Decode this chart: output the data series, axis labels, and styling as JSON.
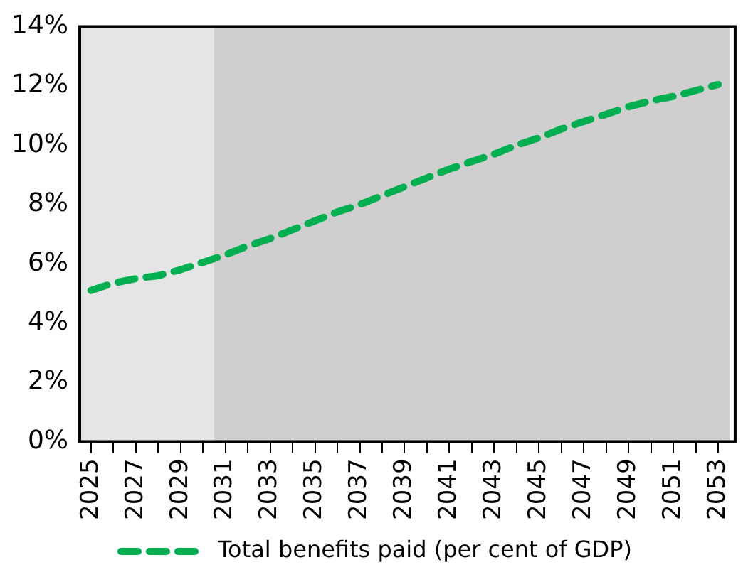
{
  "chart_data": {
    "type": "line",
    "x": [
      2025,
      2026,
      2027,
      2028,
      2029,
      2030,
      2031,
      2032,
      2033,
      2034,
      2035,
      2036,
      2037,
      2038,
      2039,
      2040,
      2041,
      2042,
      2043,
      2044,
      2045,
      2046,
      2047,
      2048,
      2049,
      2050,
      2051,
      2052,
      2053
    ],
    "series": [
      {
        "name": "Total benefits paid (per cent of GDP)",
        "color": "#00b050",
        "values": [
          5.1,
          5.35,
          5.5,
          5.6,
          5.8,
          6.05,
          6.3,
          6.6,
          6.85,
          7.15,
          7.45,
          7.75,
          8.0,
          8.3,
          8.6,
          8.9,
          9.2,
          9.45,
          9.7,
          10.0,
          10.25,
          10.55,
          10.8,
          11.05,
          11.3,
          11.5,
          11.65,
          11.85,
          12.05
        ]
      }
    ],
    "xlim": [
      2024.5,
      2053.5
    ],
    "xticks": [
      2025,
      {
        "value": 2026,
        "label": null
      },
      2027,
      {
        "value": 2028,
        "label": null
      },
      2029,
      {
        "value": 2030,
        "label": null
      },
      2031,
      {
        "value": 2032,
        "label": null
      },
      2033,
      {
        "value": 2034,
        "label": null
      },
      2035,
      {
        "value": 2036,
        "label": null
      },
      2037,
      {
        "value": 2038,
        "label": null
      },
      2039,
      {
        "value": 2040,
        "label": null
      },
      2041,
      {
        "value": 2042,
        "label": null
      },
      2043,
      {
        "value": 2044,
        "label": null
      },
      2045,
      {
        "value": 2046,
        "label": null
      },
      2047,
      {
        "value": 2048,
        "label": null
      },
      2049,
      {
        "value": 2050,
        "label": null
      },
      2051,
      {
        "value": 2052,
        "label": null
      },
      2053
    ],
    "ylim": [
      0,
      14
    ],
    "yticks": [
      {
        "value": 0,
        "label": "0%"
      },
      {
        "value": 2,
        "label": "2%"
      },
      {
        "value": 4,
        "label": "4%"
      },
      {
        "value": 6,
        "label": "6%"
      },
      {
        "value": 8,
        "label": "8%"
      },
      {
        "value": 10,
        "label": "10%"
      },
      {
        "value": 12,
        "label": "12%"
      },
      {
        "value": 14,
        "label": "14%"
      }
    ],
    "bands": [
      {
        "axis": "x",
        "from": 2024.5,
        "to": 2030.5,
        "color": "#e5e5e5"
      },
      {
        "axis": "x",
        "from": 2030.5,
        "to": 2053.5,
        "color": "#d0cece"
      }
    ],
    "grid": false,
    "legend": "bottom",
    "marker": "none",
    "line_style": "dashed"
  }
}
